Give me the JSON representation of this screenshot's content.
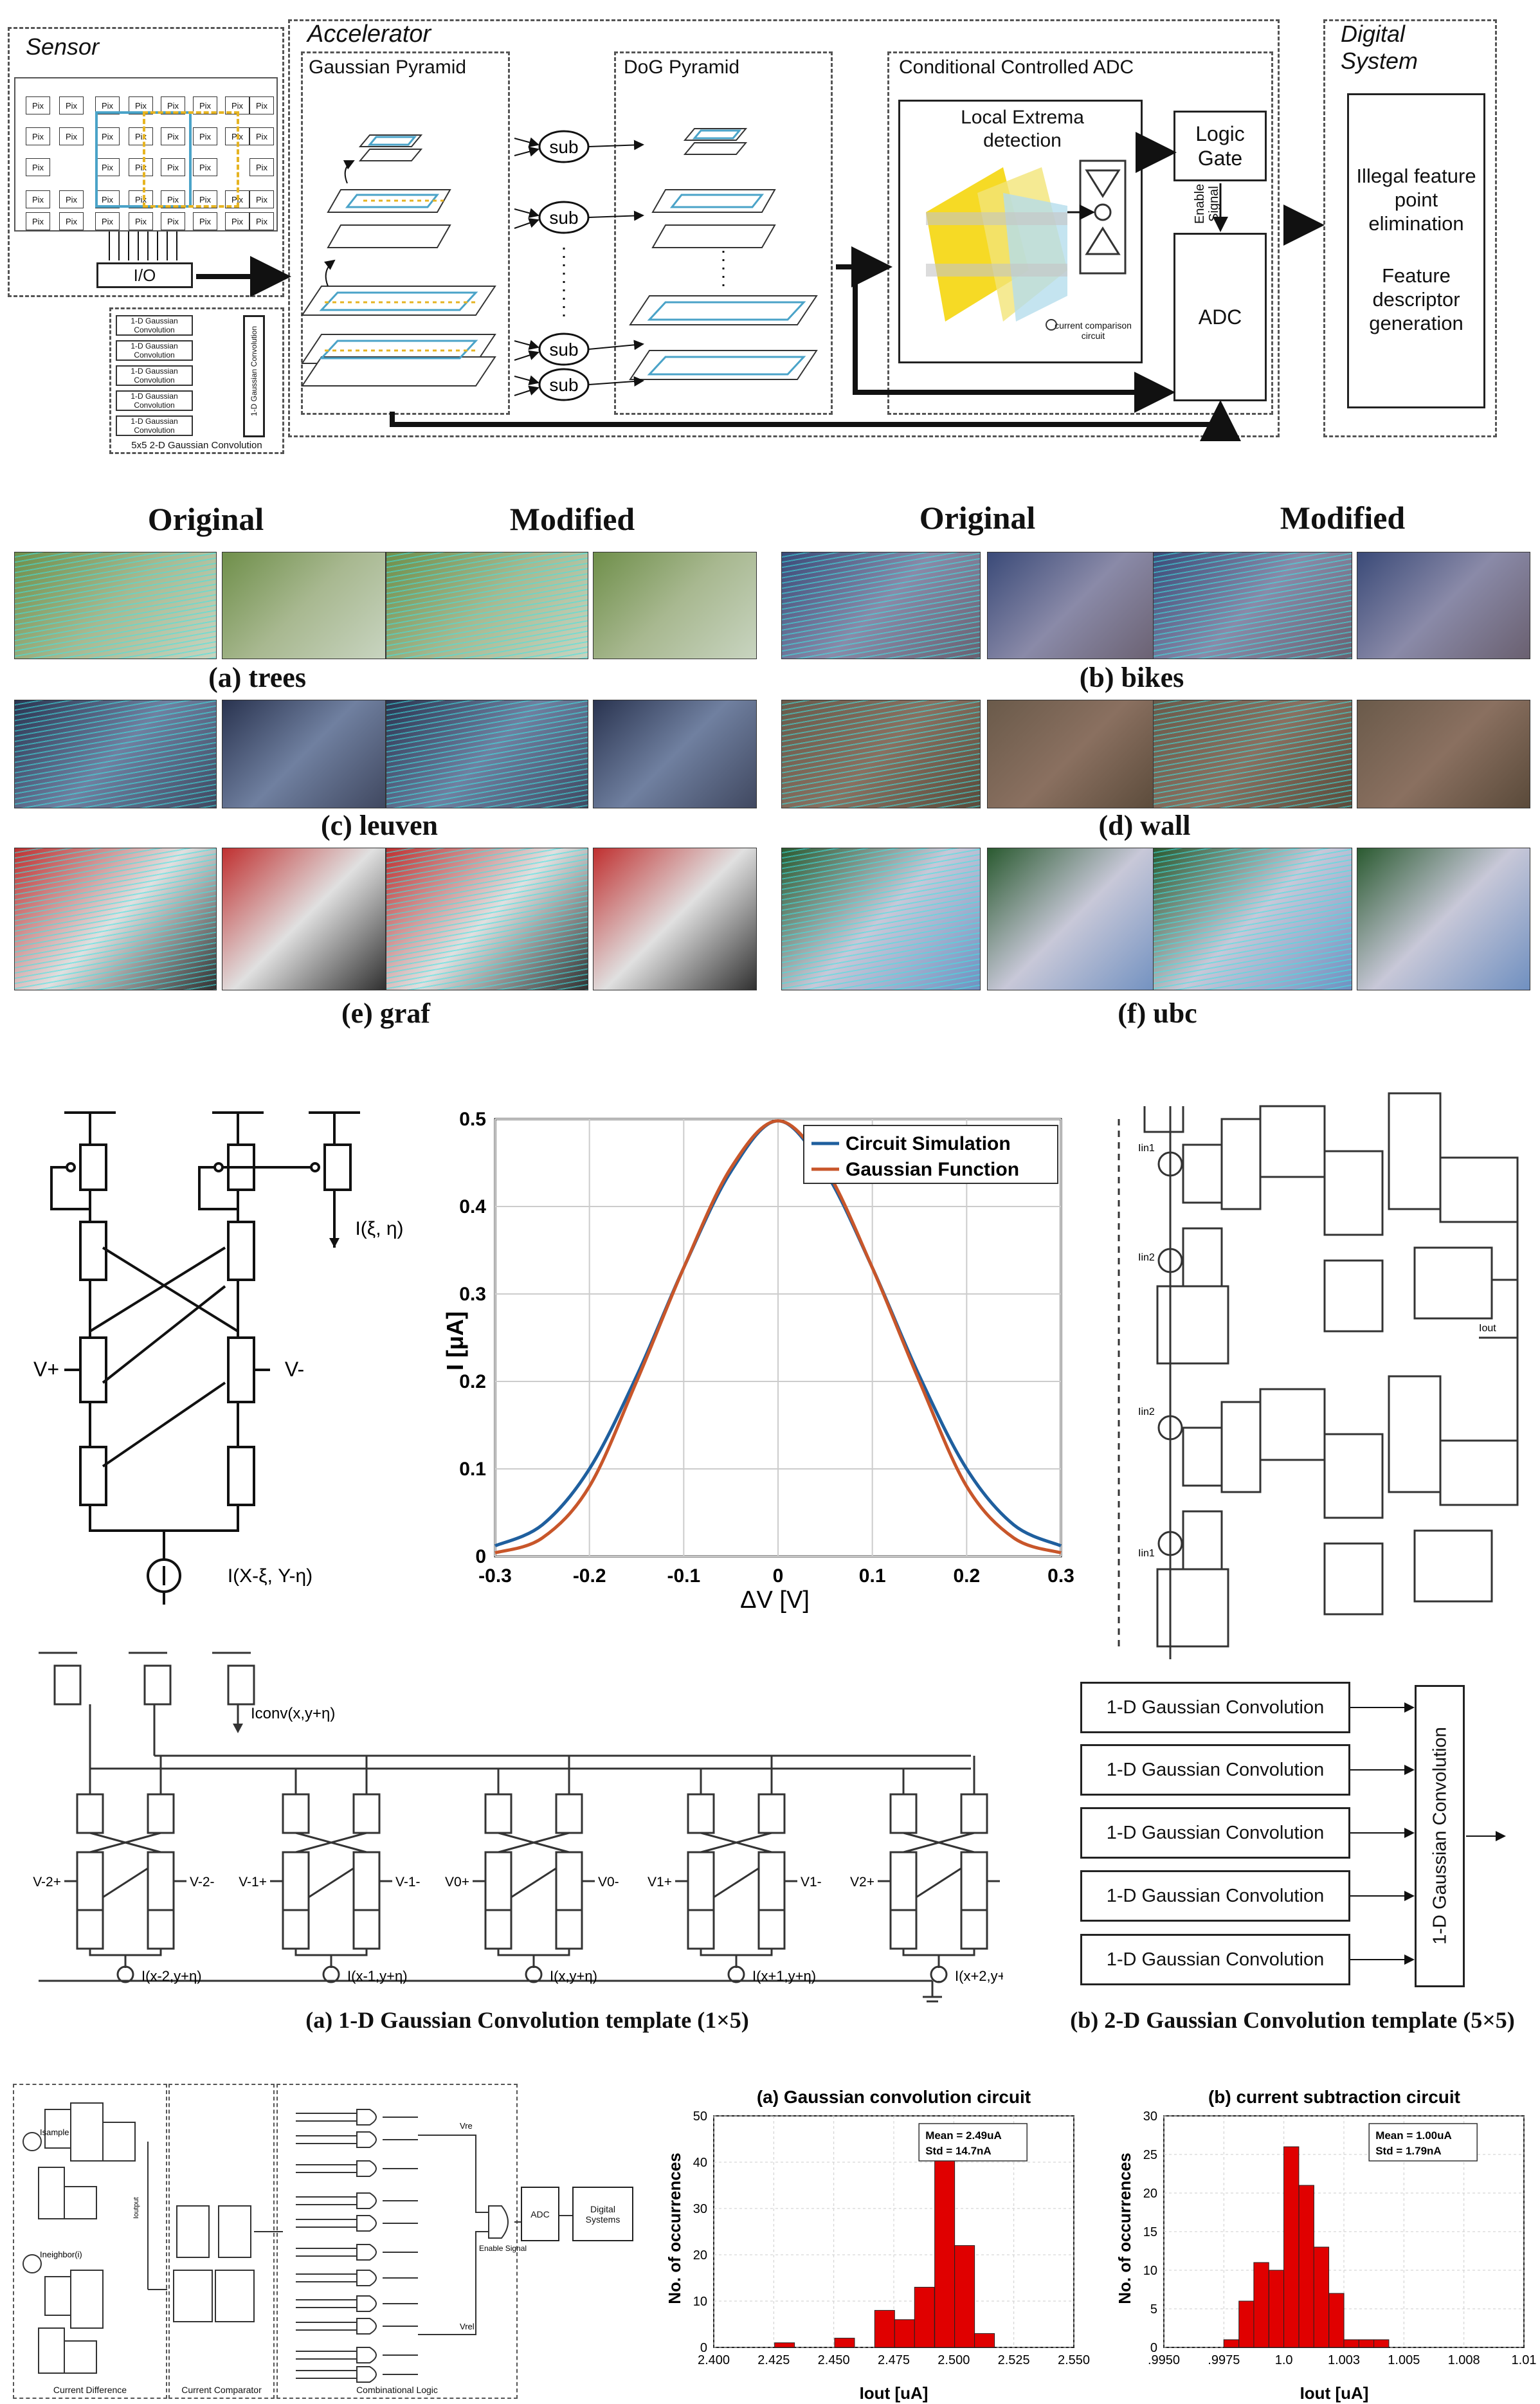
{
  "block_diagram": {
    "sensor_label": "Sensor",
    "pix_label": "Pix",
    "io_label": "I/O",
    "conv_1d_label": "1-D Gaussian Convolution",
    "conv_vertical_label": "1-D Gaussian Convolution",
    "conv_2d_label": "5x5 2-D Gaussian Convolution",
    "accelerator_label": "Accelerator",
    "gaussian_pyramid_label": "Gaussian Pyramid",
    "dog_pyramid_label": "DoG Pyramid",
    "sub_label": "sub",
    "adc_section_label": "Conditional Controlled ADC",
    "local_extrema_label": "Local Extrema detection",
    "current_comparison_label": "current comparison circuit",
    "logic_gate_label": "Logic Gate",
    "enable_signal_label": "Enable Signal",
    "adc_label": "ADC",
    "digital_system_label": "Digital System",
    "illegal_label": "Illegal feature point elimination",
    "descriptor_label": "Feature descriptor generation"
  },
  "image_grid": {
    "left_original": "Original",
    "left_modified": "Modified",
    "right_original": "Original",
    "right_modified": "Modified",
    "captions": [
      "(a) trees",
      "(b) bikes",
      "(c) leuven",
      "(d) wall",
      "(e) graf",
      "(f) ubc"
    ]
  },
  "circuit1": {
    "out_label": "I(ξ, η)",
    "vplus": "V+",
    "vminus": "V-",
    "source_label": "I(X-ξ, Y-η)"
  },
  "chart_data": [
    {
      "type": "line",
      "title": "",
      "xlabel": "ΔV [V]",
      "ylabel": "I [μA]",
      "xlim": [
        -0.3,
        0.3
      ],
      "ylim": [
        0,
        0.5
      ],
      "xticks": [
        "-0.3",
        "-0.2",
        "-0.1",
        "0",
        "0.1",
        "0.2",
        "0.3"
      ],
      "yticks": [
        "0",
        "0.1",
        "0.2",
        "0.3",
        "0.4",
        "0.5"
      ],
      "grid": true,
      "legend_position": "top-right",
      "series": [
        {
          "name": "Circuit Simulation",
          "color": "#1f5f9e",
          "x": [
            -0.3,
            -0.25,
            -0.2,
            -0.15,
            -0.1,
            -0.05,
            0,
            0.05,
            0.1,
            0.15,
            0.2,
            0.25,
            0.3
          ],
          "y": [
            0.012,
            0.036,
            0.1,
            0.206,
            0.33,
            0.44,
            0.498,
            0.44,
            0.33,
            0.206,
            0.1,
            0.036,
            0.012
          ]
        },
        {
          "name": "Gaussian Function",
          "color": "#c8562a",
          "x": [
            -0.3,
            -0.25,
            -0.2,
            -0.15,
            -0.1,
            -0.05,
            0,
            0.05,
            0.1,
            0.15,
            0.2,
            0.25,
            0.3
          ],
          "y": [
            0.004,
            0.021,
            0.08,
            0.2,
            0.33,
            0.444,
            0.498,
            0.444,
            0.33,
            0.2,
            0.08,
            0.021,
            0.004
          ]
        }
      ]
    },
    {
      "type": "bar",
      "title": "(a) Gaussian convolution circuit",
      "xlabel": "Iout [uA]",
      "ylabel": "No. of occurrences",
      "xlim": [
        2.4,
        2.55
      ],
      "ylim": [
        0,
        50
      ],
      "xticks": [
        "2.400",
        "2.425",
        "2.450",
        "2.475",
        "2.500",
        "2.525",
        "2.550"
      ],
      "yticks": [
        "0",
        "10",
        "20",
        "30",
        "40",
        "50"
      ],
      "bin_width": 0.0083,
      "x": [
        2.4295,
        2.4545,
        2.4712,
        2.4795,
        2.4878,
        2.4962,
        2.5045,
        2.5128
      ],
      "values": [
        1,
        2,
        8,
        6,
        13,
        45,
        22,
        3
      ],
      "annotation": [
        "Mean = 2.49uA",
        "Std = 14.7nA"
      ],
      "color": "#e00000"
    },
    {
      "type": "bar",
      "title": "(b) current subtraction circuit",
      "xlabel": "Iout [uA]",
      "ylabel": "No. of occurrences",
      "xlim": [
        0.995,
        1.01
      ],
      "ylim": [
        0,
        30
      ],
      "xticks": [
        ".9950",
        ".9975",
        "1.0",
        "1.003",
        "1.005",
        "1.008",
        "1.01"
      ],
      "yticks": [
        "0",
        "5",
        "10",
        "15",
        "20",
        "25",
        "30"
      ],
      "bin_width": 0.000625,
      "x": [
        0.99781,
        0.99844,
        0.99906,
        0.99969,
        1.00031,
        1.00094,
        1.00156,
        1.00219,
        1.00281,
        1.00344,
        1.00406,
        1.00469
      ],
      "values": [
        1,
        6,
        11,
        10,
        26,
        21,
        13,
        7,
        1,
        1,
        1,
        0
      ],
      "annotation": [
        "Mean = 1.00uA",
        "Std = 1.79nA"
      ],
      "color": "#e00000"
    }
  ],
  "circuit2": {
    "iin1": "Iin1",
    "iin2": "Iin2",
    "iout": "Iout"
  },
  "conv_template": {
    "iconv_label": "Iconv(x,y+η)",
    "v_labels": [
      "V-2+",
      "V-2-",
      "V-1+",
      "V-1-",
      "V0+",
      "V0-",
      "V1+",
      "V1-",
      "V2+",
      "V2-"
    ],
    "i_labels": [
      "I(x-2,y+η)",
      "I(x-1,y+η)",
      "I(x,y+η)",
      "I(x+1,y+η)",
      "I(x+2,y+η)"
    ],
    "caption_a": "(a) 1-D Gaussian Convolution template (1×5)"
  },
  "template_2d": {
    "items": [
      "1-D Gaussian Convolution",
      "1-D Gaussian Convolution",
      "1-D Gaussian Convolution",
      "1-D Gaussian Convolution",
      "1-D Gaussian Convolution"
    ],
    "vertical": "1-D Gaussian Convolution",
    "caption_b": "(b) 2-D Gaussian Convolution template (5×5)"
  },
  "bottom_circuit": {
    "isample": "Isample",
    "ineighbor": "Ineighbor(i)",
    "ioutput": "Ioutput",
    "vref_plus": "Vre",
    "vref_minus": "Vrel",
    "enable_signal": "Enable Signal",
    "adc": "ADC",
    "digital_systems": "Digital Systems",
    "current_difference": "Current Difference",
    "current_comparator": "Current Comparator",
    "combinational_logic": "Combinational Logic"
  }
}
